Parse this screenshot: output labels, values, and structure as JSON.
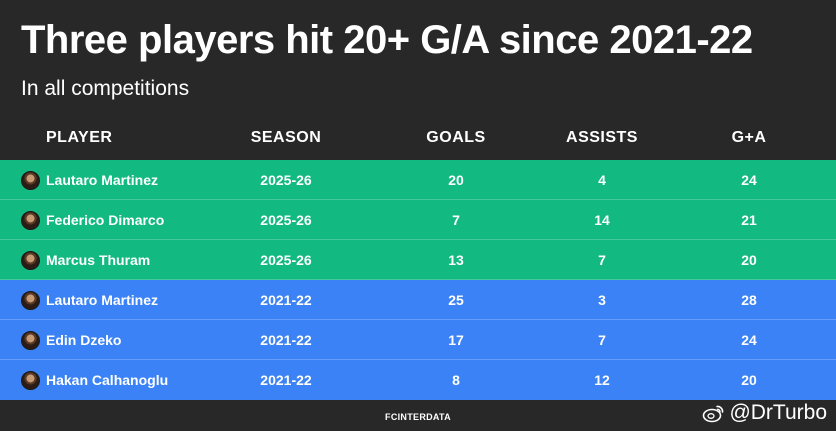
{
  "title": "Three players hit 20+ G/A since 2021-22",
  "subtitle": "In all competitions",
  "headers": {
    "player": "PLAYER",
    "season": "SEASON",
    "goals": "GOALS",
    "assists": "ASSISTS",
    "ga": "G+A"
  },
  "rows": [
    {
      "player": "Lautaro Martinez",
      "season": "2025-26",
      "goals": "20",
      "assists": "4",
      "ga": "24",
      "group": "2025"
    },
    {
      "player": "Federico Dimarco",
      "season": "2025-26",
      "goals": "7",
      "assists": "14",
      "ga": "21",
      "group": "2025"
    },
    {
      "player": "Marcus Thuram",
      "season": "2025-26",
      "goals": "13",
      "assists": "7",
      "ga": "20",
      "group": "2025"
    },
    {
      "player": "Lautaro Martinez",
      "season": "2021-22",
      "goals": "25",
      "assists": "3",
      "ga": "28",
      "group": "2021"
    },
    {
      "player": "Edin Dzeko",
      "season": "2021-22",
      "goals": "17",
      "assists": "7",
      "ga": "24",
      "group": "2021"
    },
    {
      "player": "Hakan Calhanoglu",
      "season": "2021-22",
      "goals": "8",
      "assists": "12",
      "ga": "20",
      "group": "2021"
    }
  ],
  "footer": "FCINTERDATA",
  "watermark": "@DrTurbo",
  "colors": {
    "background": "#282828",
    "row_2025": "#12b981",
    "row_2021": "#3b82f6"
  },
  "icons": {
    "avatar": "player-photo",
    "watermark": "weibo-icon"
  }
}
